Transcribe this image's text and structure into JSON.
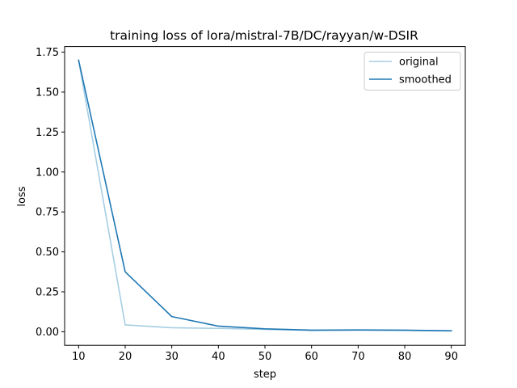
{
  "chart_data": {
    "type": "line",
    "title": "training loss of lora/mistral-7B/DC/rayyan/w-DSIR",
    "xlabel": "step",
    "ylabel": "loss",
    "x": [
      10,
      20,
      30,
      40,
      50,
      60,
      70,
      80,
      90
    ],
    "xlim": [
      7,
      93
    ],
    "ylim": [
      -0.085,
      1.785
    ],
    "xticks": [
      10,
      20,
      30,
      40,
      50,
      60,
      70,
      80,
      90
    ],
    "yticks": [
      0.0,
      0.25,
      0.5,
      0.75,
      1.0,
      1.25,
      1.5,
      1.75
    ],
    "ytick_labels": [
      "0.00",
      "0.25",
      "0.50",
      "0.75",
      "1.00",
      "1.25",
      "1.50",
      "1.75"
    ],
    "grid": false,
    "legend_position": "top-right",
    "series": [
      {
        "name": "original",
        "color": "#a6cee3",
        "values": [
          1.7,
          0.043,
          0.025,
          0.021,
          0.015,
          0.008,
          0.01,
          0.008,
          0.005
        ]
      },
      {
        "name": "smoothed",
        "color": "#1f78b4",
        "values": [
          1.7,
          0.375,
          0.095,
          0.035,
          0.018,
          0.01,
          0.011,
          0.01,
          0.006
        ]
      }
    ]
  }
}
